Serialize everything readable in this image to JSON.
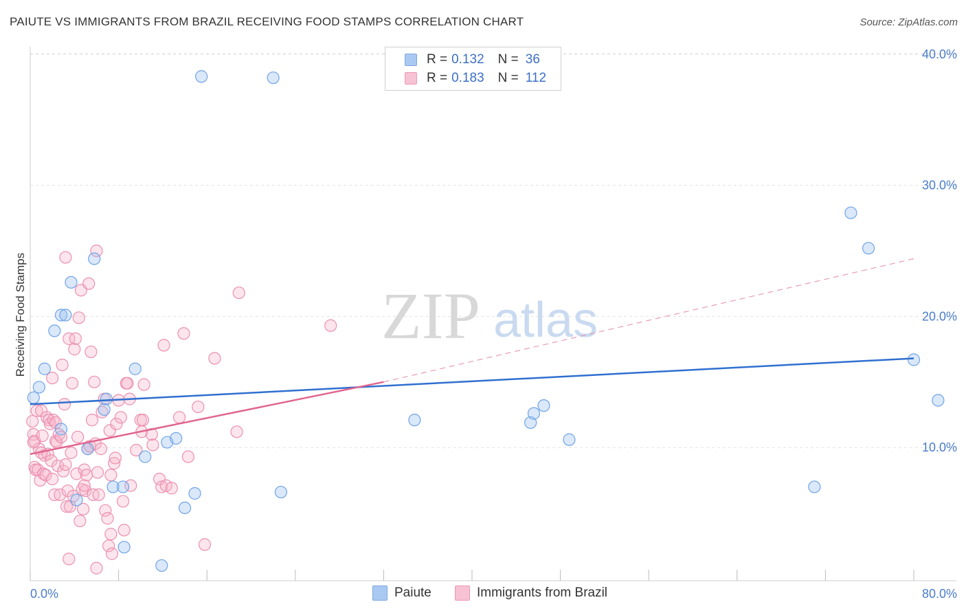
{
  "title": "PAIUTE VS IMMIGRANTS FROM BRAZIL RECEIVING FOOD STAMPS CORRELATION CHART",
  "source": "Source: ZipAtlas.com",
  "watermark": {
    "zip": "ZIP",
    "atlas": "atlas"
  },
  "legend": {
    "rows": [
      {
        "r_label": "R = ",
        "r_value": "0.132",
        "n_label": "N = ",
        "n_value": "36",
        "color": "#aac9f2",
        "border": "#7aa6e0"
      },
      {
        "r_label": "R = ",
        "r_value": "0.183",
        "n_label": "N = ",
        "n_value": "112",
        "color": "#f7c2d3",
        "border": "#eb98b4"
      }
    ]
  },
  "bottom_legend": {
    "paiute": "Paiute",
    "brazil": "Immigrants from Brazil"
  },
  "chart_data": {
    "type": "scatter",
    "ylabel": "Receiving Food Stamps",
    "x_range": [
      0,
      80
    ],
    "y_range": [
      0,
      40
    ],
    "x_tick_labels": [
      "0.0%",
      "80.0%"
    ],
    "y_ticks": [
      10,
      20,
      30,
      40
    ],
    "y_tick_labels": [
      "10.0%",
      "20.0%",
      "30.0%",
      "40.0%"
    ],
    "grid": true,
    "series": [
      {
        "name": "Paiute",
        "color": "#6fa3e6",
        "fill": "rgba(150,190,240,0.35)",
        "points": [
          [
            0.3,
            13.8
          ],
          [
            0.8,
            14.6
          ],
          [
            1.3,
            16.0
          ],
          [
            2.2,
            18.9
          ],
          [
            2.8,
            11.4
          ],
          [
            2.8,
            20.1
          ],
          [
            3.2,
            20.1
          ],
          [
            3.7,
            22.6
          ],
          [
            4.2,
            6.0
          ],
          [
            5.2,
            9.9
          ],
          [
            5.8,
            24.4
          ],
          [
            6.7,
            12.9
          ],
          [
            6.9,
            13.7
          ],
          [
            7.5,
            7.0
          ],
          [
            8.4,
            7.0
          ],
          [
            8.5,
            2.4
          ],
          [
            9.5,
            16.0
          ],
          [
            10.4,
            9.3
          ],
          [
            11.9,
            1.0
          ],
          [
            12.4,
            10.4
          ],
          [
            13.2,
            10.7
          ],
          [
            14.0,
            5.4
          ],
          [
            14.9,
            6.5
          ],
          [
            15.5,
            38.3
          ],
          [
            22.0,
            38.2
          ],
          [
            22.7,
            6.6
          ],
          [
            34.8,
            12.1
          ],
          [
            45.3,
            11.9
          ],
          [
            45.6,
            12.6
          ],
          [
            46.5,
            13.2
          ],
          [
            48.8,
            10.6
          ],
          [
            71.0,
            7.0
          ],
          [
            74.3,
            27.9
          ],
          [
            75.9,
            25.2
          ],
          [
            80.0,
            16.7
          ],
          [
            82.2,
            13.6
          ]
        ]
      },
      {
        "name": "Immigrants from Brazil",
        "color": "#eb8fb0",
        "fill": "rgba(245,180,200,0.35)",
        "points": [
          [
            0.2,
            12.0
          ],
          [
            0.3,
            11.0
          ],
          [
            0.4,
            10.5
          ],
          [
            0.4,
            8.5
          ],
          [
            0.5,
            8.3
          ],
          [
            0.6,
            12.8
          ],
          [
            0.7,
            8.3
          ],
          [
            0.8,
            9.9
          ],
          [
            0.9,
            7.5
          ],
          [
            1.0,
            12.8
          ],
          [
            1.1,
            10.9
          ],
          [
            1.2,
            8.0
          ],
          [
            1.3,
            9.4
          ],
          [
            1.4,
            7.9
          ],
          [
            1.5,
            12.3
          ],
          [
            1.6,
            9.5
          ],
          [
            1.7,
            12.1
          ],
          [
            1.8,
            11.8
          ],
          [
            1.9,
            9.0
          ],
          [
            2.0,
            7.6
          ],
          [
            2.0,
            15.3
          ],
          [
            2.1,
            12.1
          ],
          [
            2.2,
            6.4
          ],
          [
            2.3,
            10.5
          ],
          [
            2.4,
            10.4
          ],
          [
            2.5,
            8.6
          ],
          [
            2.6,
            11.0
          ],
          [
            2.7,
            6.4
          ],
          [
            2.8,
            10.8
          ],
          [
            2.9,
            16.3
          ],
          [
            3.0,
            8.2
          ],
          [
            3.1,
            13.3
          ],
          [
            3.2,
            8.7
          ],
          [
            3.2,
            24.5
          ],
          [
            3.3,
            5.5
          ],
          [
            3.4,
            6.7
          ],
          [
            3.5,
            18.3
          ],
          [
            3.5,
            1.5
          ],
          [
            3.6,
            5.5
          ],
          [
            3.7,
            9.6
          ],
          [
            3.8,
            14.9
          ],
          [
            3.9,
            6.3
          ],
          [
            4.0,
            17.5
          ],
          [
            4.1,
            18.3
          ],
          [
            4.2,
            8.0
          ],
          [
            4.3,
            10.8
          ],
          [
            4.4,
            19.9
          ],
          [
            4.5,
            4.4
          ],
          [
            4.6,
            22.0
          ],
          [
            4.7,
            6.8
          ],
          [
            4.8,
            5.3
          ],
          [
            4.9,
            8.3
          ],
          [
            5.0,
            6.7
          ],
          [
            5.1,
            7.9
          ],
          [
            5.2,
            9.9
          ],
          [
            5.3,
            22.5
          ],
          [
            5.4,
            10.1
          ],
          [
            5.5,
            17.3
          ],
          [
            5.6,
            12.1
          ],
          [
            5.7,
            6.4
          ],
          [
            5.8,
            15.0
          ],
          [
            5.9,
            10.3
          ],
          [
            6.0,
            25.0
          ],
          [
            6.0,
            0.8
          ],
          [
            6.1,
            8.1
          ],
          [
            6.2,
            6.4
          ],
          [
            6.5,
            12.7
          ],
          [
            6.7,
            13.7
          ],
          [
            6.8,
            5.2
          ],
          [
            7.0,
            4.6
          ],
          [
            7.1,
            2.5
          ],
          [
            7.2,
            11.3
          ],
          [
            7.3,
            7.9
          ],
          [
            7.3,
            3.4
          ],
          [
            7.4,
            1.9
          ],
          [
            7.6,
            8.8
          ],
          [
            7.7,
            9.2
          ],
          [
            7.8,
            11.8
          ],
          [
            8.0,
            13.6
          ],
          [
            8.2,
            12.3
          ],
          [
            8.4,
            5.9
          ],
          [
            8.5,
            3.7
          ],
          [
            8.7,
            14.9
          ],
          [
            8.8,
            14.9
          ],
          [
            9.0,
            13.7
          ],
          [
            9.1,
            7.1
          ],
          [
            10.0,
            12.1
          ],
          [
            10.1,
            11.2
          ],
          [
            10.2,
            12.1
          ],
          [
            10.3,
            14.8
          ],
          [
            11.0,
            11.0
          ],
          [
            11.1,
            10.2
          ],
          [
            11.7,
            7.6
          ],
          [
            11.9,
            7.0
          ],
          [
            12.1,
            17.8
          ],
          [
            12.3,
            7.1
          ],
          [
            12.8,
            6.9
          ],
          [
            13.5,
            12.3
          ],
          [
            13.9,
            18.7
          ],
          [
            14.3,
            9.3
          ],
          [
            15.2,
            13.1
          ],
          [
            15.8,
            2.6
          ],
          [
            16.7,
            16.8
          ],
          [
            18.7,
            11.2
          ],
          [
            18.9,
            21.8
          ],
          [
            27.2,
            19.3
          ],
          [
            0.3,
            10.4
          ],
          [
            1.0,
            9.6
          ],
          [
            2.3,
            11.9
          ],
          [
            4.9,
            7.1
          ],
          [
            6.4,
            9.9
          ],
          [
            9.6,
            9.8
          ]
        ]
      }
    ],
    "trend_lines": [
      {
        "series": "Paiute",
        "color": "#2f6fd0",
        "from": [
          0,
          13.3
        ],
        "to": [
          80,
          16.8
        ],
        "style": "solid"
      },
      {
        "series": "Immigrants from Brazil",
        "color": "#e0658f",
        "from": [
          0,
          9.5
        ],
        "to": [
          32,
          15.0
        ],
        "style": "solid"
      },
      {
        "series": "Immigrants from Brazil",
        "color": "#e89ab6",
        "from": [
          32,
          15.0
        ],
        "to": [
          80,
          24.4
        ],
        "style": "dashed"
      }
    ]
  }
}
